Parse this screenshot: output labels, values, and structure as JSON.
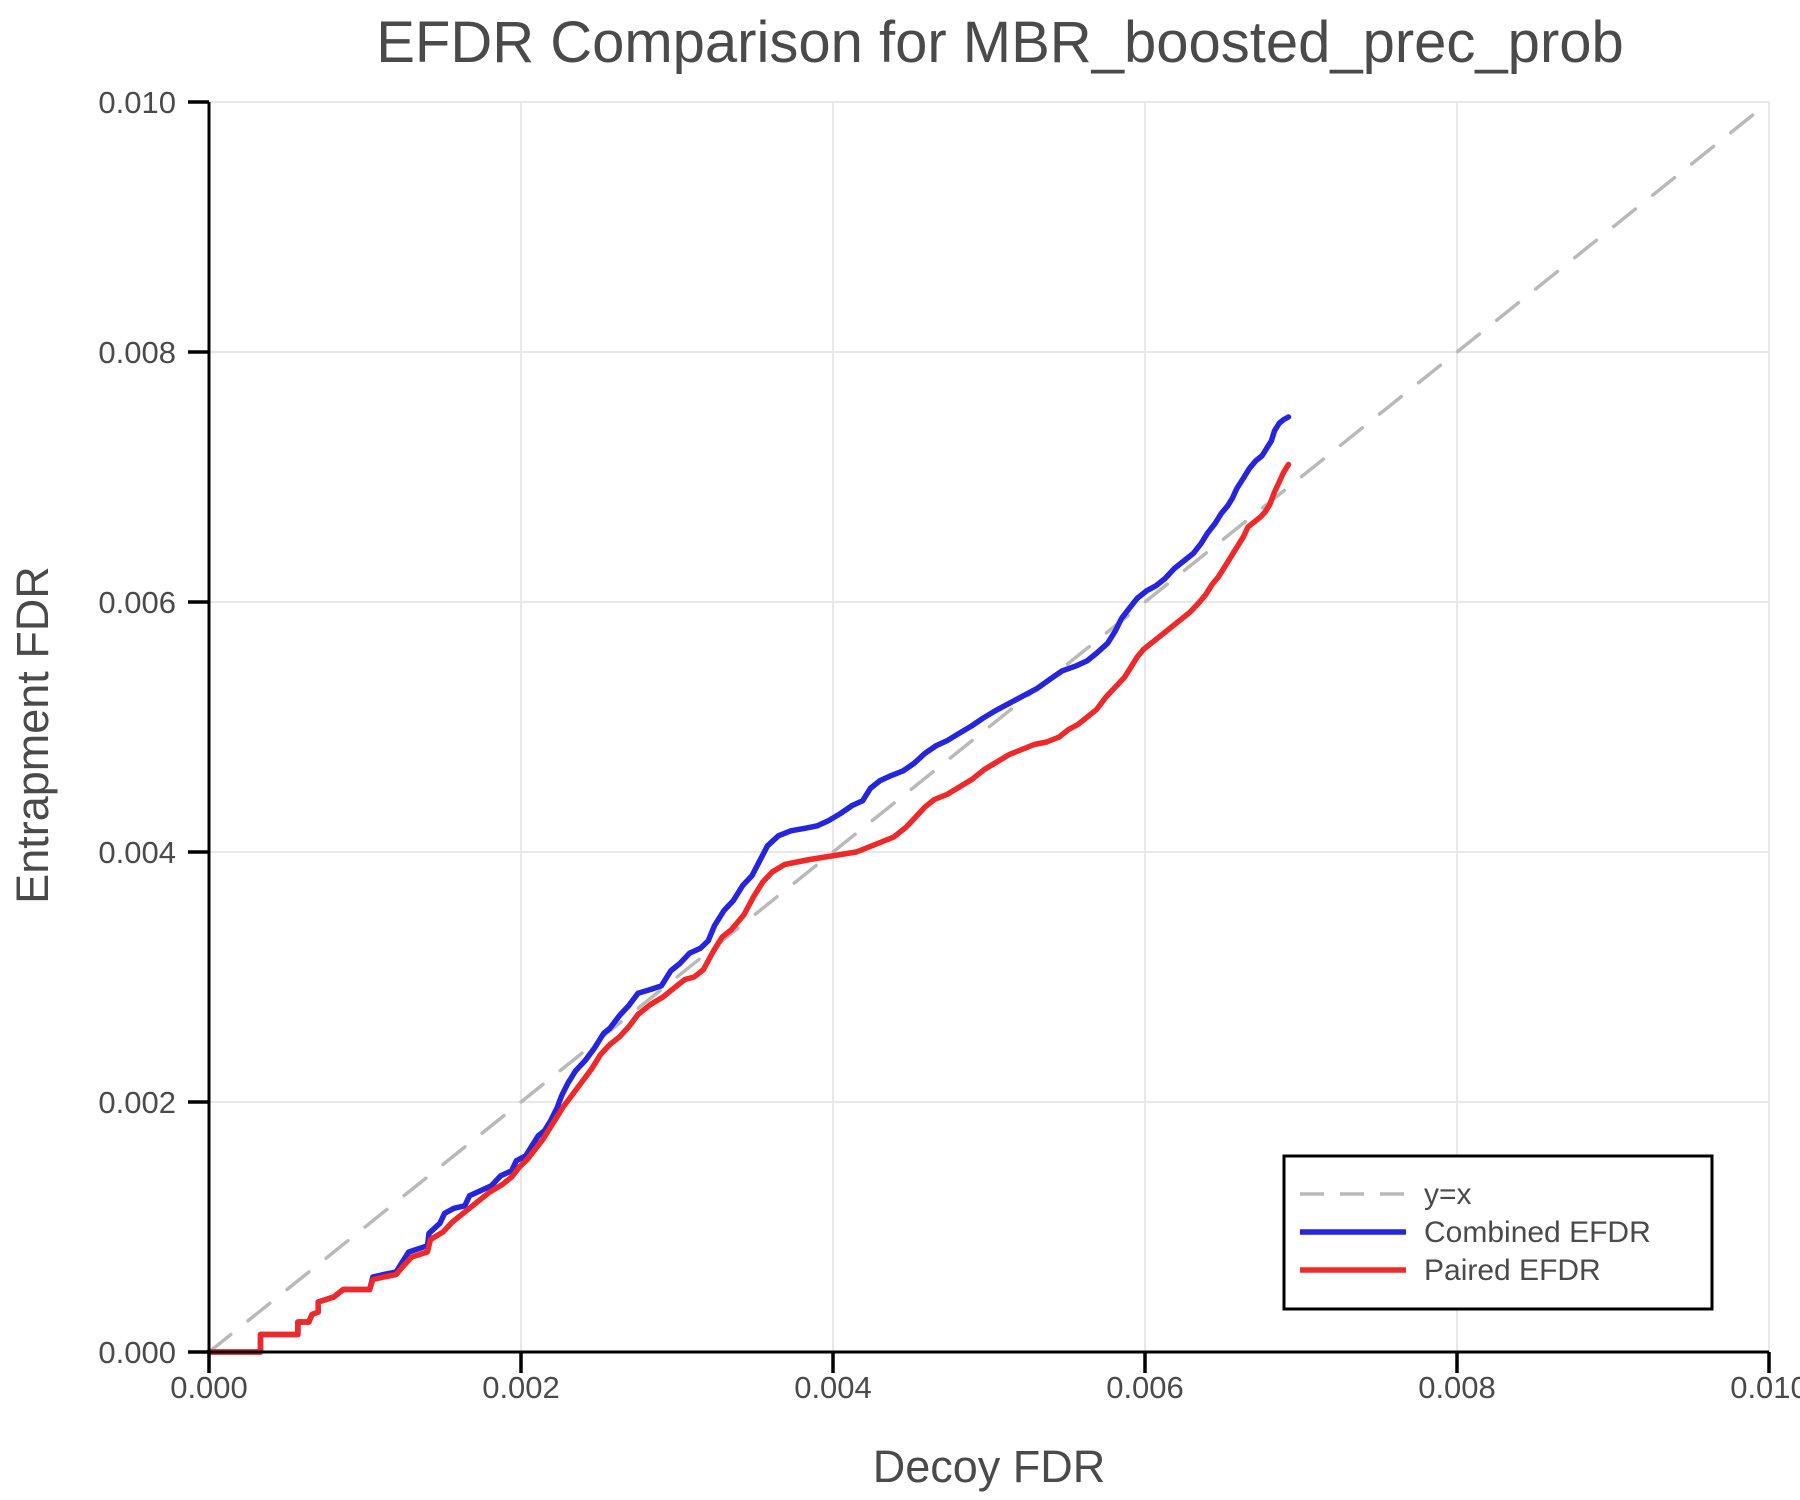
{
  "title": "EFDR Comparison for MBR_boosted_prec_prob",
  "axes": {
    "xlabel": "Decoy FDR",
    "ylabel": "Entrapment FDR"
  },
  "legend": {
    "position": "lower right",
    "items": [
      {
        "label": "y=x"
      },
      {
        "label": "Combined EFDR"
      },
      {
        "label": "Paired EFDR"
      }
    ]
  },
  "colors": {
    "background": "#ffffff",
    "grid": "#e8e8e8",
    "diagonal": "#b9b9b9",
    "axis": "#000000",
    "text": "#4a4a4a",
    "combined": "#2525dd",
    "paired": "#ef2929"
  },
  "chart_data": {
    "type": "line",
    "title": "EFDR Comparison for MBR_boosted_prec_prob",
    "xlabel": "Decoy FDR",
    "ylabel": "Entrapment FDR",
    "xlim": [
      0.0,
      0.01
    ],
    "ylim": [
      0.0,
      0.01
    ],
    "grid": true,
    "legend_position": "lower right",
    "x_ticks": [
      0.0,
      0.002,
      0.004,
      0.006,
      0.008,
      0.01
    ],
    "x_tick_labels": [
      "0.000",
      "0.002",
      "0.004",
      "0.006",
      "0.008",
      "0.010"
    ],
    "y_ticks": [
      0.0,
      0.002,
      0.004,
      0.006,
      0.008,
      0.01
    ],
    "y_tick_labels": [
      "0.000",
      "0.002",
      "0.004",
      "0.006",
      "0.008",
      "0.010"
    ],
    "series": [
      {
        "name": "y=x",
        "style": "dashed",
        "color": "#b9b9b9",
        "width": 3.5,
        "points": [
          [
            0.0,
            0.0
          ],
          [
            0.01,
            0.01
          ]
        ]
      },
      {
        "name": "Combined EFDR",
        "style": "solid",
        "color": "#2525dd",
        "width": 5.5,
        "points": [
          [
            0,
            0
          ],
          [
            0.00033,
            0
          ],
          [
            0.00033,
            0.00014
          ],
          [
            0.00057,
            0.00014
          ],
          [
            0.00057,
            0.00024
          ],
          [
            0.00064,
            0.00024
          ],
          [
            0.00066,
            0.0003
          ],
          [
            0.0007,
            0.00032
          ],
          [
            0.0007,
            0.0004
          ],
          [
            0.0008,
            0.00044
          ],
          [
            0.00086,
            0.0005
          ],
          [
            0.00103,
            0.0005
          ],
          [
            0.00105,
            0.0006
          ],
          [
            0.00112,
            0.00062
          ],
          [
            0.0012,
            0.00064
          ],
          [
            0.00124,
            0.00072
          ],
          [
            0.00128,
            0.0008
          ],
          [
            0.0014,
            0.00085
          ],
          [
            0.00141,
            0.00095
          ],
          [
            0.00148,
            0.00103
          ],
          [
            0.00151,
            0.00111
          ],
          [
            0.00157,
            0.00115
          ],
          [
            0.00164,
            0.00117
          ],
          [
            0.00167,
            0.00125
          ],
          [
            0.00174,
            0.00129
          ],
          [
            0.00181,
            0.00133
          ],
          [
            0.00187,
            0.00141
          ],
          [
            0.00194,
            0.00145
          ],
          [
            0.00197,
            0.00153
          ],
          [
            0.00203,
            0.00157
          ],
          [
            0.00207,
            0.00165
          ],
          [
            0.00211,
            0.00173
          ],
          [
            0.00215,
            0.00177
          ],
          [
            0.00219,
            0.00185
          ],
          [
            0.00223,
            0.00195
          ],
          [
            0.00226,
            0.00205
          ],
          [
            0.0023,
            0.00215
          ],
          [
            0.00235,
            0.00225
          ],
          [
            0.00241,
            0.00233
          ],
          [
            0.00247,
            0.00243
          ],
          [
            0.00253,
            0.00255
          ],
          [
            0.00257,
            0.00259
          ],
          [
            0.00263,
            0.00269
          ],
          [
            0.00269,
            0.00277
          ],
          [
            0.00275,
            0.00287
          ],
          [
            0.00283,
            0.0029
          ],
          [
            0.0029,
            0.00293
          ],
          [
            0.00296,
            0.00305
          ],
          [
            0.00302,
            0.00311
          ],
          [
            0.00308,
            0.00319
          ],
          [
            0.00315,
            0.00323
          ],
          [
            0.0032,
            0.00329
          ],
          [
            0.00324,
            0.00341
          ],
          [
            0.0033,
            0.00353
          ],
          [
            0.00336,
            0.00361
          ],
          [
            0.00342,
            0.00373
          ],
          [
            0.00348,
            0.00381
          ],
          [
            0.00353,
            0.00393
          ],
          [
            0.00358,
            0.00405
          ],
          [
            0.00365,
            0.00413
          ],
          [
            0.00373,
            0.00417
          ],
          [
            0.00382,
            0.00419
          ],
          [
            0.0039,
            0.00421
          ],
          [
            0.00397,
            0.00425
          ],
          [
            0.00405,
            0.00431
          ],
          [
            0.00412,
            0.00437
          ],
          [
            0.00419,
            0.00441
          ],
          [
            0.00424,
            0.00451
          ],
          [
            0.0043,
            0.00457
          ],
          [
            0.00437,
            0.00461
          ],
          [
            0.00445,
            0.00465
          ],
          [
            0.00452,
            0.00471
          ],
          [
            0.00459,
            0.00479
          ],
          [
            0.00466,
            0.00485
          ],
          [
            0.00473,
            0.00489
          ],
          [
            0.00481,
            0.00495
          ],
          [
            0.00489,
            0.00501
          ],
          [
            0.00496,
            0.00507
          ],
          [
            0.00504,
            0.00513
          ],
          [
            0.00513,
            0.00519
          ],
          [
            0.00522,
            0.00525
          ],
          [
            0.00531,
            0.00531
          ],
          [
            0.0054,
            0.00539
          ],
          [
            0.00547,
            0.00545
          ],
          [
            0.00556,
            0.00549
          ],
          [
            0.00563,
            0.00553
          ],
          [
            0.00569,
            0.00559
          ],
          [
            0.00576,
            0.00567
          ],
          [
            0.00581,
            0.00577
          ],
          [
            0.00585,
            0.00587
          ],
          [
            0.0059,
            0.00595
          ],
          [
            0.00595,
            0.00603
          ],
          [
            0.00601,
            0.00609
          ],
          [
            0.00607,
            0.00613
          ],
          [
            0.00613,
            0.00619
          ],
          [
            0.00619,
            0.00627
          ],
          [
            0.00625,
            0.00633
          ],
          [
            0.00631,
            0.00639
          ],
          [
            0.00636,
            0.00647
          ],
          [
            0.0064,
            0.00655
          ],
          [
            0.00645,
            0.00663
          ],
          [
            0.00649,
            0.00671
          ],
          [
            0.00653,
            0.00677
          ],
          [
            0.00656,
            0.00683
          ],
          [
            0.00659,
            0.00691
          ],
          [
            0.00663,
            0.00699
          ],
          [
            0.00667,
            0.00707
          ],
          [
            0.00671,
            0.00713
          ],
          [
            0.00675,
            0.00717
          ],
          [
            0.00678,
            0.00723
          ],
          [
            0.00681,
            0.00729
          ],
          [
            0.00683,
            0.00737
          ],
          [
            0.00686,
            0.00743
          ],
          [
            0.00689,
            0.00746
          ],
          [
            0.00692,
            0.00748
          ]
        ]
      },
      {
        "name": "Paired EFDR",
        "style": "solid",
        "color": "#ef2929",
        "width": 5.5,
        "points": [
          [
            0,
            0
          ],
          [
            0.00033,
            0
          ],
          [
            0.00033,
            0.00014
          ],
          [
            0.00057,
            0.00014
          ],
          [
            0.00057,
            0.00024
          ],
          [
            0.00064,
            0.00024
          ],
          [
            0.00066,
            0.0003
          ],
          [
            0.0007,
            0.00032
          ],
          [
            0.0007,
            0.0004
          ],
          [
            0.0008,
            0.00044
          ],
          [
            0.00086,
            0.0005
          ],
          [
            0.00103,
            0.0005
          ],
          [
            0.00105,
            0.00058
          ],
          [
            0.00112,
            0.0006
          ],
          [
            0.0012,
            0.00062
          ],
          [
            0.00124,
            0.00068
          ],
          [
            0.0013,
            0.00076
          ],
          [
            0.0014,
            0.0008
          ],
          [
            0.00142,
            0.0009
          ],
          [
            0.0015,
            0.00096
          ],
          [
            0.00156,
            0.00104
          ],
          [
            0.00162,
            0.0011
          ],
          [
            0.00168,
            0.00116
          ],
          [
            0.00174,
            0.00122
          ],
          [
            0.0018,
            0.00128
          ],
          [
            0.00188,
            0.00134
          ],
          [
            0.00194,
            0.0014
          ],
          [
            0.00199,
            0.00148
          ],
          [
            0.00204,
            0.00154
          ],
          [
            0.00209,
            0.00162
          ],
          [
            0.00214,
            0.0017
          ],
          [
            0.00219,
            0.0018
          ],
          [
            0.00223,
            0.00188
          ],
          [
            0.00227,
            0.00196
          ],
          [
            0.00233,
            0.00206
          ],
          [
            0.00239,
            0.00216
          ],
          [
            0.00245,
            0.00226
          ],
          [
            0.00251,
            0.00238
          ],
          [
            0.00257,
            0.00246
          ],
          [
            0.00263,
            0.00252
          ],
          [
            0.00269,
            0.0026
          ],
          [
            0.00275,
            0.0027
          ],
          [
            0.00283,
            0.00278
          ],
          [
            0.00291,
            0.00284
          ],
          [
            0.00299,
            0.00292
          ],
          [
            0.00305,
            0.00298
          ],
          [
            0.00311,
            0.003
          ],
          [
            0.00317,
            0.00306
          ],
          [
            0.00323,
            0.0032
          ],
          [
            0.00329,
            0.00332
          ],
          [
            0.00335,
            0.00338
          ],
          [
            0.00343,
            0.0035
          ],
          [
            0.00349,
            0.00364
          ],
          [
            0.00355,
            0.00376
          ],
          [
            0.00361,
            0.00384
          ],
          [
            0.00369,
            0.0039
          ],
          [
            0.00377,
            0.00392
          ],
          [
            0.00385,
            0.00394
          ],
          [
            0.00395,
            0.00396
          ],
          [
            0.00405,
            0.00398
          ],
          [
            0.00415,
            0.004
          ],
          [
            0.00423,
            0.00404
          ],
          [
            0.00431,
            0.00408
          ],
          [
            0.00439,
            0.00412
          ],
          [
            0.00447,
            0.0042
          ],
          [
            0.00453,
            0.00428
          ],
          [
            0.00459,
            0.00436
          ],
          [
            0.00465,
            0.00442
          ],
          [
            0.00473,
            0.00446
          ],
          [
            0.00481,
            0.00452
          ],
          [
            0.00489,
            0.00458
          ],
          [
            0.00497,
            0.00466
          ],
          [
            0.00505,
            0.00472
          ],
          [
            0.00513,
            0.00478
          ],
          [
            0.00521,
            0.00482
          ],
          [
            0.00529,
            0.00486
          ],
          [
            0.00537,
            0.00488
          ],
          [
            0.00545,
            0.00492
          ],
          [
            0.00551,
            0.00498
          ],
          [
            0.00557,
            0.00502
          ],
          [
            0.00563,
            0.00508
          ],
          [
            0.00569,
            0.00514
          ],
          [
            0.00575,
            0.00524
          ],
          [
            0.00581,
            0.00532
          ],
          [
            0.00587,
            0.0054
          ],
          [
            0.00591,
            0.00548
          ],
          [
            0.00595,
            0.00556
          ],
          [
            0.00599,
            0.00562
          ],
          [
            0.00605,
            0.00568
          ],
          [
            0.00611,
            0.00574
          ],
          [
            0.00617,
            0.0058
          ],
          [
            0.00623,
            0.00586
          ],
          [
            0.00629,
            0.00592
          ],
          [
            0.00635,
            0.006
          ],
          [
            0.00639,
            0.00606
          ],
          [
            0.00643,
            0.00614
          ],
          [
            0.00647,
            0.0062
          ],
          [
            0.00651,
            0.00628
          ],
          [
            0.00655,
            0.00636
          ],
          [
            0.00659,
            0.00644
          ],
          [
            0.00663,
            0.00652
          ],
          [
            0.00666,
            0.0066
          ],
          [
            0.0067,
            0.00664
          ],
          [
            0.00674,
            0.00668
          ],
          [
            0.00677,
            0.00672
          ],
          [
            0.0068,
            0.00678
          ],
          [
            0.00683,
            0.00688
          ],
          [
            0.00686,
            0.00696
          ],
          [
            0.00689,
            0.00704
          ],
          [
            0.00692,
            0.0071
          ]
        ]
      }
    ]
  }
}
